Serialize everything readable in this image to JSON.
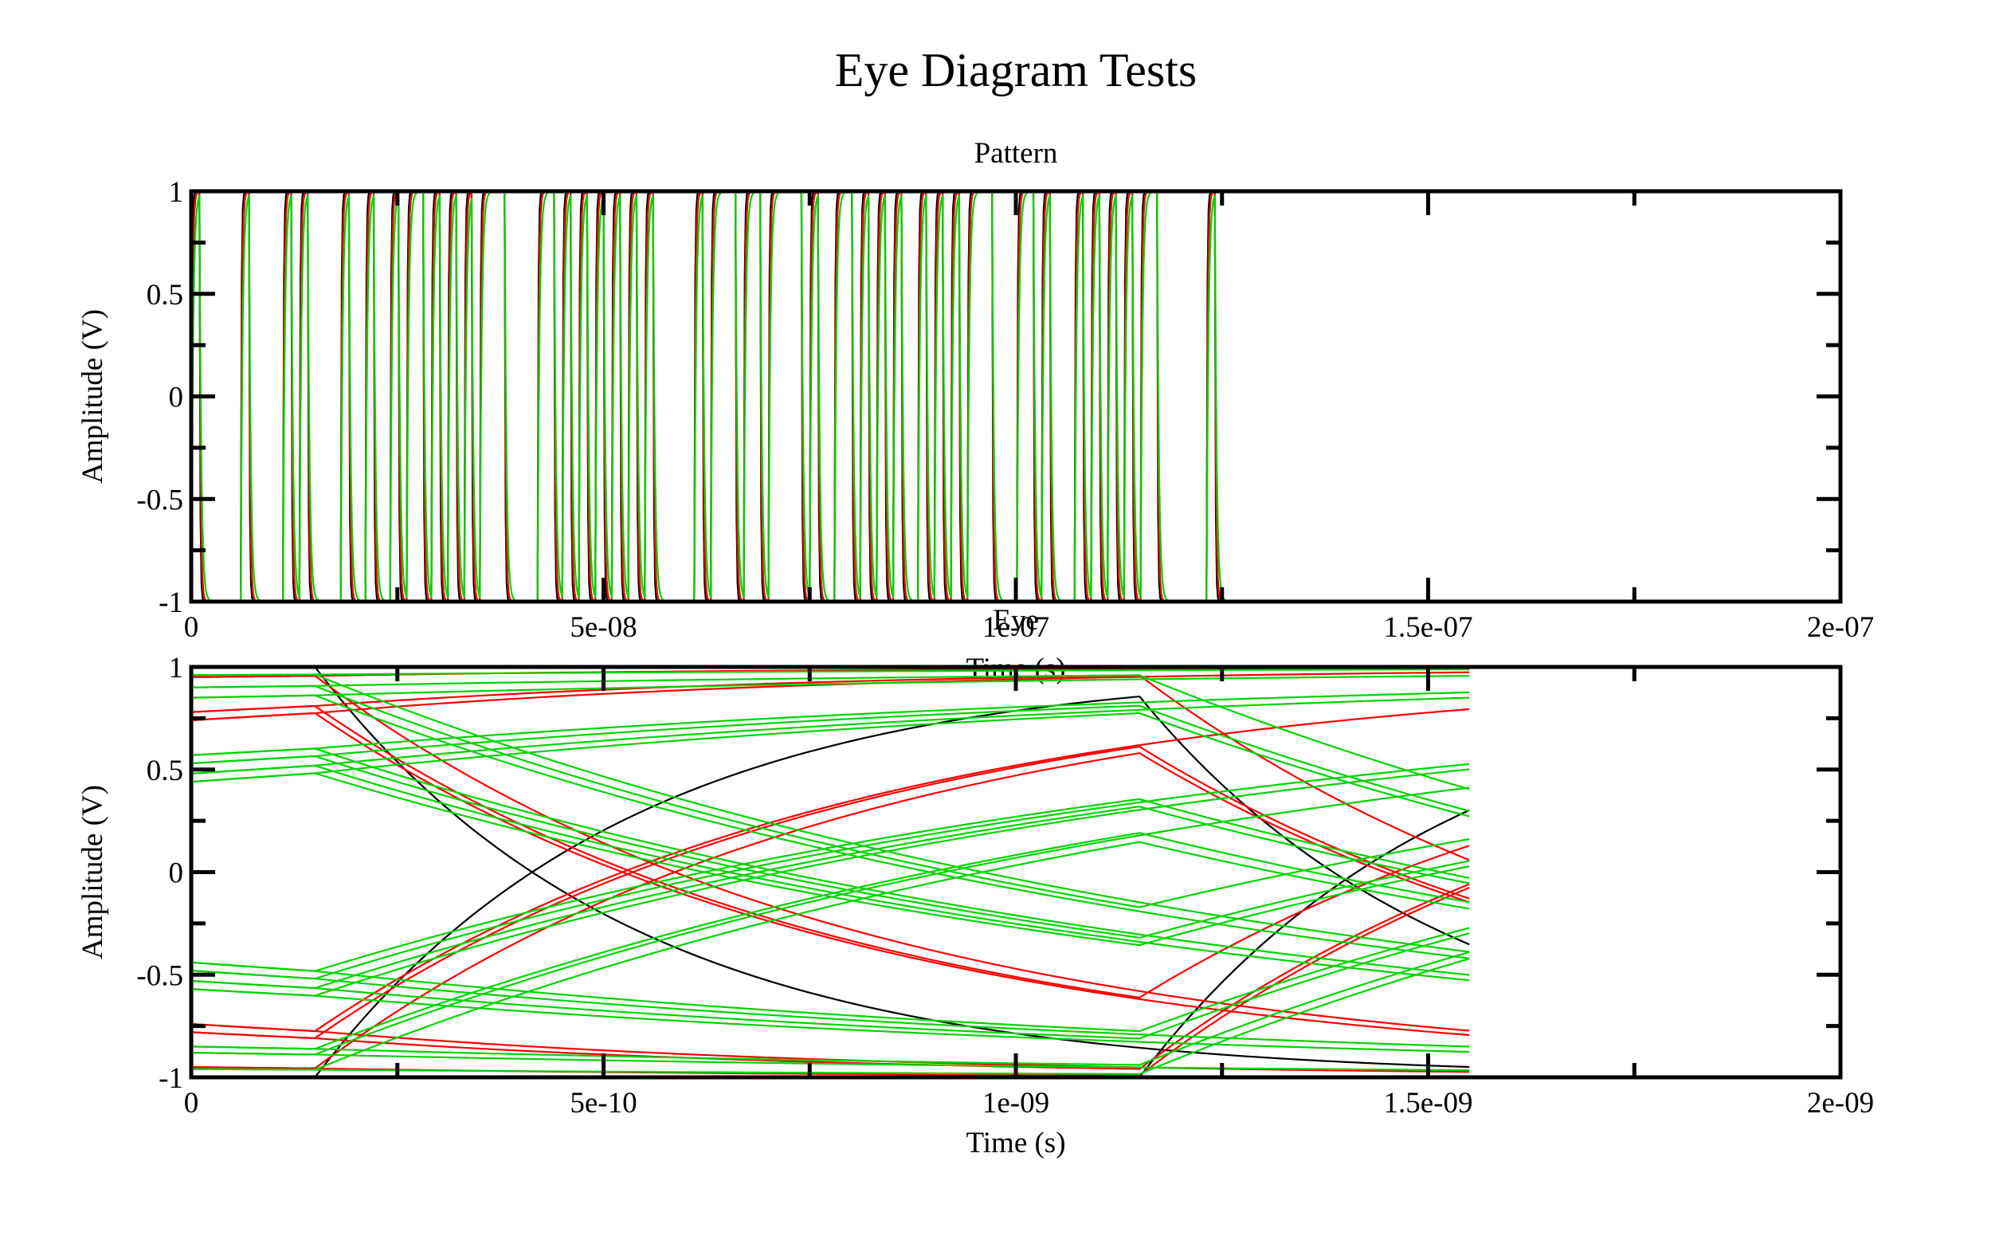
{
  "figure": {
    "title": "Eye Diagram Tests"
  },
  "colors": {
    "black": "#000000",
    "red": "#ff0000",
    "green": "#00d400"
  },
  "chart_data": [
    {
      "type": "line",
      "title": "Pattern",
      "xlabel": "Time (s)",
      "ylabel": "Amplitude (V)",
      "xlim": [
        0,
        2e-07
      ],
      "ylim": [
        -1,
        1
      ],
      "xticks": [
        0,
        5e-08,
        1e-07,
        1.5e-07,
        2e-07
      ],
      "xtick_labels": [
        "0",
        "5e-08",
        "1e-07",
        "1.5e-07",
        "2e-07"
      ],
      "yticks": [
        -1,
        -0.5,
        0,
        0.5,
        1
      ],
      "ytick_labels": [
        "-1",
        "-0.5",
        "0",
        "0.5",
        "1"
      ],
      "grid": false,
      "bit_period": 1e-09,
      "signal_end": 1.3e-07,
      "bits": [
        1,
        0,
        0,
        0,
        0,
        0,
        1,
        0,
        0,
        0,
        0,
        1,
        0,
        1,
        0,
        0,
        0,
        0,
        1,
        0,
        0,
        1,
        0,
        0,
        1,
        0,
        1,
        1,
        0,
        1,
        0,
        1,
        0,
        1,
        0,
        1,
        1,
        1,
        0,
        0,
        0,
        0,
        1,
        1,
        0,
        1,
        0,
        1,
        0,
        1,
        0,
        1,
        0,
        1,
        0,
        1,
        0,
        0,
        0,
        0,
        0,
        1,
        0,
        1,
        1,
        1,
        0,
        1,
        1,
        0,
        1,
        1,
        1,
        1,
        0,
        1,
        0,
        0,
        1,
        1,
        0,
        1,
        0,
        1,
        0,
        1,
        0,
        0,
        1,
        0,
        1,
        0,
        1,
        0,
        1,
        1,
        1,
        0,
        0,
        0,
        1,
        1,
        0,
        1,
        0,
        0,
        0,
        1,
        0,
        1,
        0,
        1,
        0,
        1,
        0,
        1,
        1,
        0,
        0,
        0,
        0,
        0,
        0,
        1,
        0,
        0,
        0,
        0,
        0,
        0
      ],
      "series": [
        {
          "color": "black",
          "tau": 8e-11
        },
        {
          "color": "red",
          "tau": 1.3e-10
        },
        {
          "color": "green",
          "tau": 2.2e-10
        }
      ]
    },
    {
      "type": "line",
      "title": "Eye",
      "xlabel": "Time (s)",
      "ylabel": "Amplitude (V)",
      "xlim": [
        0,
        2e-09
      ],
      "ylim": [
        -1,
        1
      ],
      "xticks": [
        0,
        5e-10,
        1e-09,
        1.5e-09,
        2e-09
      ],
      "xtick_labels": [
        "0",
        "5e-10",
        "1e-09",
        "1.5e-09",
        "2e-09"
      ],
      "yticks": [
        -1,
        -0.5,
        0,
        0.5,
        1
      ],
      "ytick_labels": [
        "-1",
        "-0.5",
        "0",
        "0.5",
        "1"
      ],
      "grid": false,
      "transition_times": [
        1.5e-10,
        1.15e-09
      ],
      "trace_end": 1.55e-09,
      "series": [
        {
          "color": "black",
          "tau": 3.8e-10,
          "start_levels": [
            -1,
            1
          ]
        },
        {
          "color": "red",
          "tau": 6.5e-10,
          "start_levels": [
            -0.78,
            -0.74,
            0.78,
            0.74,
            -0.95,
            0.95
          ]
        },
        {
          "color": "green",
          "tau": 1.2e-09,
          "start_levels": [
            -0.44,
            -0.48,
            -0.53,
            -0.57,
            0.44,
            0.48,
            0.53,
            0.57,
            -0.85,
            -0.88,
            -0.96,
            0.85,
            0.9,
            0.96
          ]
        }
      ]
    }
  ]
}
